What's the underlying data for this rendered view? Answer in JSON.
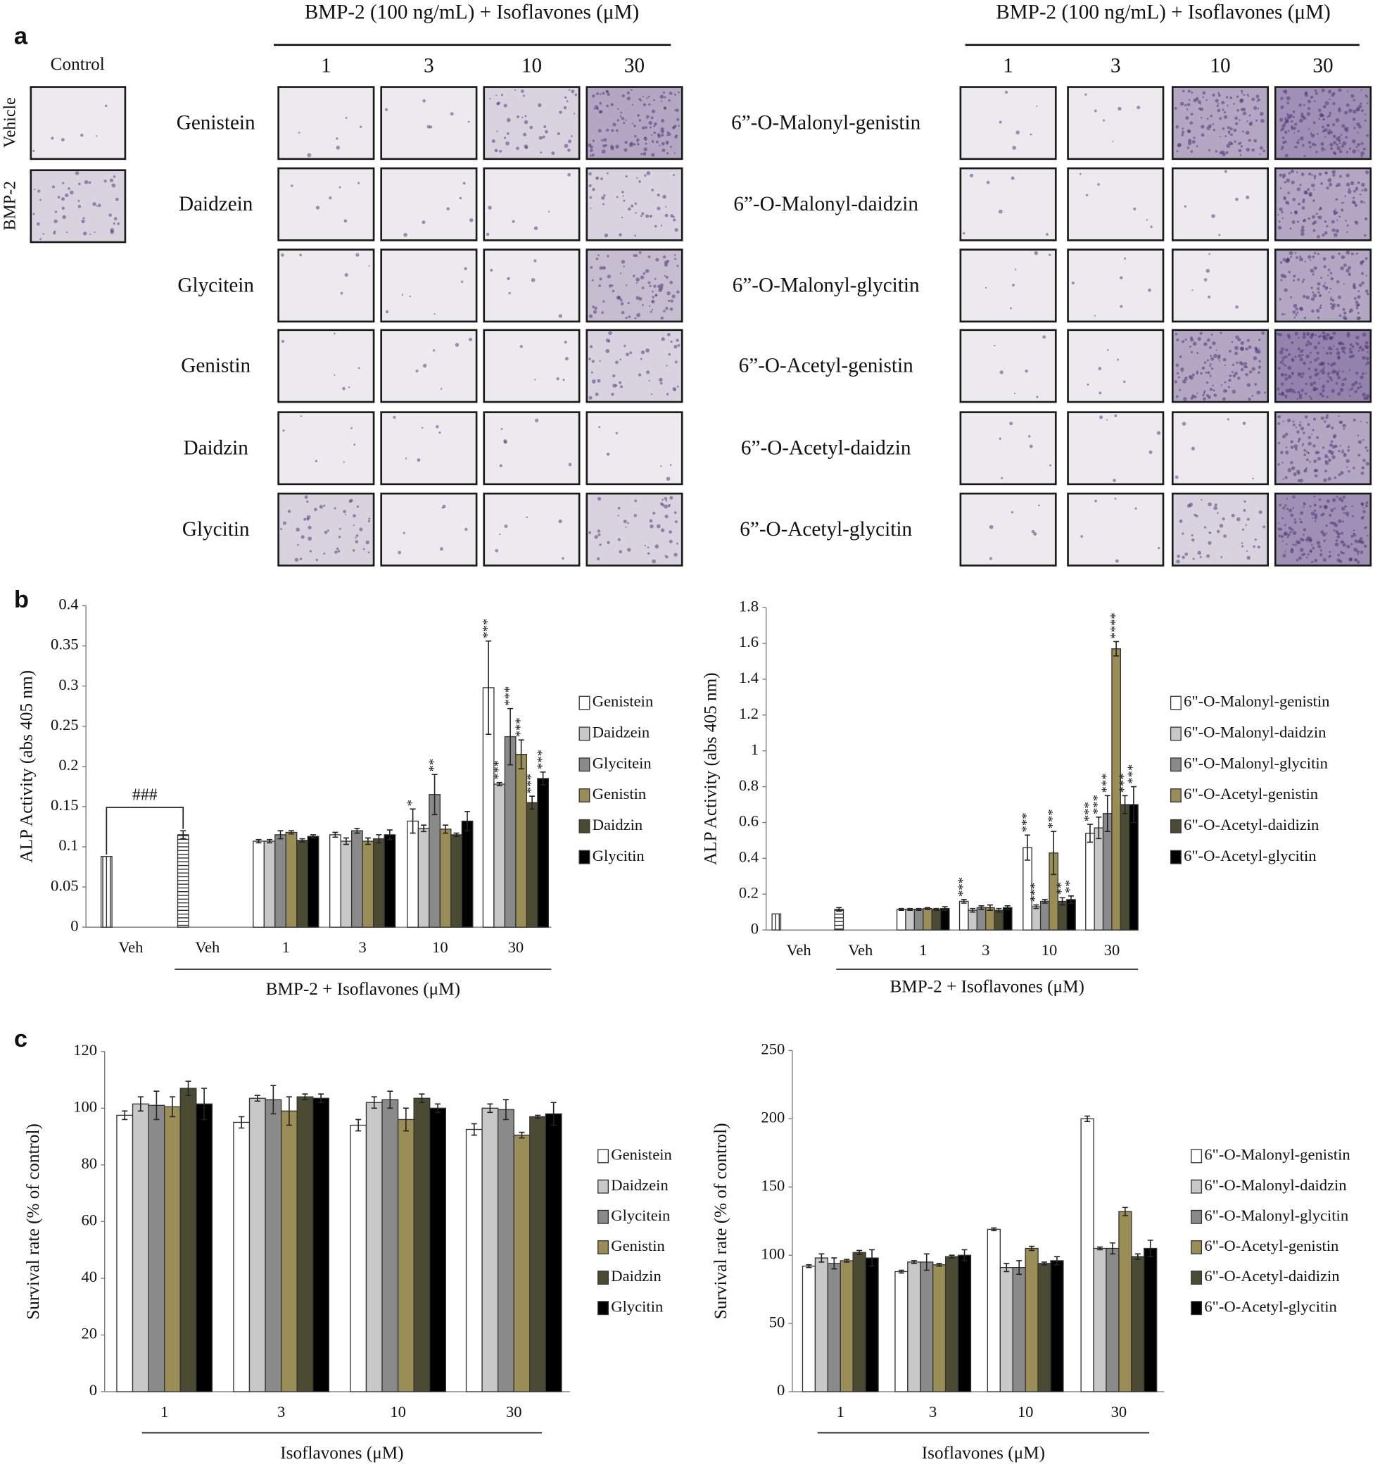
{
  "figure_labels": [
    "a",
    "b",
    "c"
  ],
  "panel_a": {
    "control_label": "Control",
    "control_rows": [
      "Vehicle",
      "BMP-2"
    ],
    "groups": [
      {
        "header": "BMP-2 (100 ng/mL) + Isoflavones (μM)",
        "concentrations": [
          "1",
          "3",
          "10",
          "30"
        ],
        "rows": [
          "Genistein",
          "Daidzein",
          "Glycitein",
          "Genistin",
          "Daidzin",
          "Glycitin"
        ]
      },
      {
        "header": "BMP-2 (100 ng/mL) + Isoflavones (μM)",
        "concentrations": [
          "1",
          "3",
          "10",
          "30"
        ],
        "rows": [
          "6”-O-Malonyl-genistin",
          "6”-O-Malonyl-daidzin",
          "6”-O-Malonyl-glycitin",
          "6”-O-Acetyl-genistin",
          "6”-O-Acetyl-daidzin",
          "6”-O-Acetyl-glycitin"
        ]
      }
    ]
  },
  "chart_data": [
    {
      "type": "bar",
      "ylabel": "ALP Activity (abs 405 nm)",
      "xlabel": "BMP-2 + Isoflavones (μM)",
      "control_categories": [
        "Veh",
        "Veh"
      ],
      "control_values": [
        0.088,
        0.115
      ],
      "control_errors": [
        null,
        0.005
      ],
      "bracket_label": "###",
      "categories": [
        "1",
        "3",
        "10",
        "30"
      ],
      "ylim": [
        0,
        0.4
      ],
      "yticks": [
        0,
        0.05,
        0.1,
        0.15,
        0.2,
        0.25,
        0.3,
        0.35,
        0.4
      ],
      "series": [
        {
          "name": "Genistein",
          "color": "#ffffff",
          "values": [
            0.107,
            0.115,
            0.132,
            0.298
          ],
          "errors": [
            0.002,
            0.003,
            0.015,
            0.058
          ],
          "labels": [
            null,
            null,
            "*",
            "***"
          ]
        },
        {
          "name": "Daidzein",
          "color": "#c8c8c8",
          "values": [
            0.107,
            0.107,
            0.123,
            0.178
          ],
          "errors": [
            0.002,
            0.004,
            0.004,
            0.002
          ],
          "labels": [
            null,
            null,
            null,
            "***"
          ]
        },
        {
          "name": "Glycitein",
          "color": "#8a8a8a",
          "values": [
            0.115,
            0.12,
            0.165,
            0.237
          ],
          "errors": [
            0.005,
            0.003,
            0.025,
            0.035
          ],
          "labels": [
            null,
            null,
            "**",
            "***"
          ]
        },
        {
          "name": "Genistin",
          "color": "#9a8e56",
          "values": [
            0.118,
            0.107,
            0.122,
            0.215
          ],
          "errors": [
            0.002,
            0.004,
            0.005,
            0.018
          ],
          "labels": [
            null,
            null,
            null,
            "***"
          ]
        },
        {
          "name": "Daidzin",
          "color": "#4b4a33",
          "values": [
            0.108,
            0.11,
            0.115,
            0.155
          ],
          "errors": [
            0.002,
            0.005,
            0.002,
            0.008
          ],
          "labels": [
            null,
            null,
            null,
            "***"
          ]
        },
        {
          "name": "Glycitin",
          "color": "#000000",
          "values": [
            0.113,
            0.115,
            0.132,
            0.185
          ],
          "errors": [
            0.002,
            0.006,
            0.012,
            0.008
          ],
          "labels": [
            null,
            null,
            null,
            "***"
          ]
        }
      ]
    },
    {
      "type": "bar",
      "ylabel": "ALP Activity (abs 405 nm)",
      "xlabel": "BMP-2 + Isoflavones (μM)",
      "control_categories": [
        "Veh",
        "Veh"
      ],
      "control_values": [
        0.09,
        0.115
      ],
      "control_errors": [
        null,
        0.01
      ],
      "categories": [
        "1",
        "3",
        "10",
        "30"
      ],
      "ylim": [
        0,
        1.8
      ],
      "yticks": [
        0,
        0.2,
        0.4,
        0.6,
        0.8,
        1,
        1.2,
        1.4,
        1.6,
        1.8
      ],
      "series": [
        {
          "name": "6\"-O-Malonyl-genistin",
          "color": "#ffffff",
          "values": [
            0.115,
            0.16,
            0.46,
            0.54
          ],
          "errors": [
            0.005,
            0.01,
            0.07,
            0.05
          ],
          "labels": [
            null,
            "***",
            "***",
            "***"
          ]
        },
        {
          "name": "6\"-O-Malonyl-daidzin",
          "color": "#c8c8c8",
          "values": [
            0.115,
            0.11,
            0.13,
            0.57
          ],
          "errors": [
            0.005,
            0.01,
            0.01,
            0.06
          ],
          "labels": [
            null,
            null,
            "***",
            "***"
          ]
        },
        {
          "name": "6\"-O-Malonyl-glycitin",
          "color": "#8a8a8a",
          "values": [
            0.115,
            0.125,
            0.16,
            0.65
          ],
          "errors": [
            0.005,
            0.01,
            0.01,
            0.1
          ],
          "labels": [
            null,
            null,
            null,
            "***"
          ]
        },
        {
          "name": "6\"-O-Acetyl-genistin",
          "color": "#9a8e56",
          "values": [
            0.12,
            0.125,
            0.43,
            1.57
          ],
          "errors": [
            0.005,
            0.015,
            0.12,
            0.04
          ],
          "labels": [
            null,
            null,
            "***",
            "****"
          ]
        },
        {
          "name": "6\"-O-Acetyl-daidizin",
          "color": "#4b4a33",
          "values": [
            0.115,
            0.11,
            0.16,
            0.7
          ],
          "errors": [
            0.005,
            0.01,
            0.02,
            0.05
          ],
          "labels": [
            null,
            null,
            "**",
            "***"
          ]
        },
        {
          "name": "6\"-O-Acetyl-glycitin",
          "color": "#000000",
          "values": [
            0.12,
            0.125,
            0.17,
            0.7
          ],
          "errors": [
            0.01,
            0.01,
            0.02,
            0.1
          ],
          "labels": [
            null,
            null,
            "**",
            "***"
          ]
        }
      ]
    },
    {
      "type": "bar",
      "ylabel": "Survival rate (% of control)",
      "xlabel": "Isoflavones (μM)",
      "categories": [
        "1",
        "3",
        "10",
        "30"
      ],
      "ylim": [
        0,
        120
      ],
      "yticks": [
        0,
        20,
        40,
        60,
        80,
        100,
        120
      ],
      "series": [
        {
          "name": "Genistein",
          "color": "#ffffff",
          "values": [
            97.5,
            95,
            94,
            92.5
          ],
          "errors": [
            1.5,
            2,
            2,
            2
          ]
        },
        {
          "name": "Daidzein",
          "color": "#c8c8c8",
          "values": [
            101.5,
            103.5,
            102,
            100
          ],
          "errors": [
            2.5,
            1,
            2,
            1.5
          ]
        },
        {
          "name": "Glycitein",
          "color": "#8a8a8a",
          "values": [
            101,
            103,
            103,
            99.5
          ],
          "errors": [
            5,
            5,
            3,
            3.5
          ]
        },
        {
          "name": "Genistin",
          "color": "#9a8e56",
          "values": [
            100.5,
            99,
            96,
            90.5
          ],
          "errors": [
            3.5,
            5,
            4,
            1
          ]
        },
        {
          "name": "Daidzin",
          "color": "#4b4a33",
          "values": [
            107,
            104,
            103.5,
            97
          ],
          "errors": [
            2.5,
            1,
            1.5,
            0.5
          ]
        },
        {
          "name": "Glycitin",
          "color": "#000000",
          "values": [
            101.5,
            103.5,
            100,
            98
          ],
          "errors": [
            5.5,
            1.5,
            1.5,
            4
          ]
        }
      ]
    },
    {
      "type": "bar",
      "ylabel": "Survival rate (% of control)",
      "xlabel": "Isoflavones (μM)",
      "categories": [
        "1",
        "3",
        "10",
        "30"
      ],
      "ylim": [
        0,
        250
      ],
      "yticks": [
        0,
        50,
        100,
        150,
        200,
        250
      ],
      "series": [
        {
          "name": "6\"-O-Malonyl-genistin",
          "color": "#ffffff",
          "values": [
            92,
            88,
            119,
            200
          ],
          "errors": [
            1,
            1,
            1,
            2
          ]
        },
        {
          "name": "6\"-O-Malonyl-daidzin",
          "color": "#c8c8c8",
          "values": [
            98,
            95,
            91,
            105
          ],
          "errors": [
            3,
            1,
            3,
            1
          ]
        },
        {
          "name": "6\"-O-Malonyl-glycitin",
          "color": "#8a8a8a",
          "values": [
            94,
            95,
            91,
            105
          ],
          "errors": [
            4,
            6,
            5,
            4
          ]
        },
        {
          "name": "6\"-O-Acetyl-genistin",
          "color": "#9a8e56",
          "values": [
            96,
            93,
            105,
            132
          ],
          "errors": [
            1,
            1,
            1.5,
            3
          ]
        },
        {
          "name": "6\"-O-Acetyl-daidizin",
          "color": "#4b4a33",
          "values": [
            102,
            99,
            94,
            99
          ],
          "errors": [
            1.5,
            1,
            1,
            2
          ]
        },
        {
          "name": "6\"-O-Acetyl-glycitin",
          "color": "#000000",
          "values": [
            98,
            100,
            96,
            105
          ],
          "errors": [
            6,
            4,
            3,
            6
          ]
        }
      ]
    }
  ]
}
